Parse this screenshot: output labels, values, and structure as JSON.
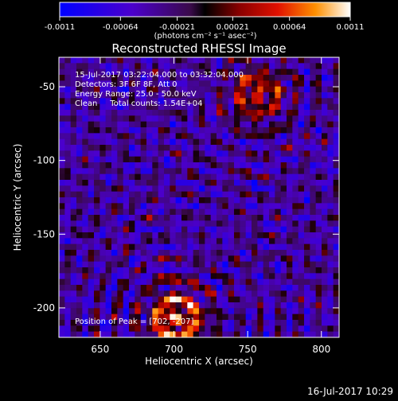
{
  "chart_data": {
    "type": "heatmap",
    "title": "Reconstructed RHESSI Image",
    "xlabel": "Heliocentric X (arcsec)",
    "ylabel": "Heliocentric Y (arcsec)",
    "xlim": [
      622,
      812
    ],
    "ylim": [
      -220,
      -30
    ],
    "x_ticks": [
      650,
      700,
      750,
      800
    ],
    "y_ticks": [
      -50,
      -100,
      -150,
      -200
    ],
    "colorbar": {
      "ticks": [
        "-0.0011",
        "-0.00064",
        "-0.00021",
        "0.00021",
        "0.00064",
        "0.0011"
      ],
      "range": [
        -0.0011,
        0.0011
      ],
      "units_line": "(photons cm⁻² s⁻¹ asec⁻²)"
    },
    "annotations": [
      "15-Jul-2017 03:22:04.000 to 03:32:04.000",
      "Detectors: 3F 6F 8F, Att 0",
      "Energy Range: 25.0 - 50.0 keV",
      "Clean     Total counts: 1.54E+04"
    ],
    "peak_label": "Position of Peak = [702, -207]",
    "peak_position": [
      702,
      -207
    ],
    "sources": [
      {
        "x": 702,
        "y": -207,
        "amplitude": 0.0011
      },
      {
        "x": 757,
        "y": -55,
        "amplitude": 0.00075
      }
    ],
    "grid": false
  },
  "footer": {
    "timestamp": "16-Jul-2017 10:29"
  }
}
